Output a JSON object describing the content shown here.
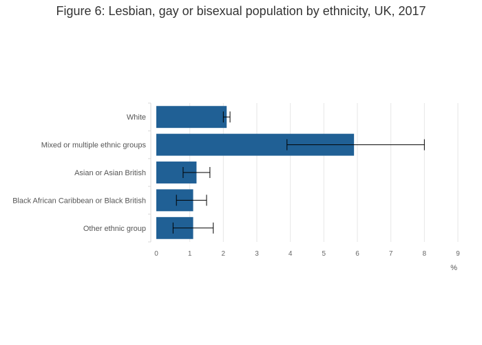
{
  "chart_data": {
    "type": "bar",
    "orientation": "horizontal",
    "title": "Figure 6: Lesbian, gay or bisexual population by ethnicity, UK, 2017",
    "xlabel": "%",
    "ylabel": "",
    "categories": [
      "White",
      "Mixed or multiple ethnic groups",
      "Asian or Asian British",
      "Black African Caribbean or Black British",
      "Other ethnic group"
    ],
    "values": [
      2.1,
      5.9,
      1.2,
      1.1,
      1.1
    ],
    "error_low": [
      2.0,
      3.9,
      0.8,
      0.6,
      0.5
    ],
    "error_high": [
      2.2,
      8.0,
      1.6,
      1.5,
      1.7
    ],
    "xlim": [
      0,
      9
    ],
    "xticks": [
      "0",
      "1",
      "2",
      "3",
      "4",
      "5",
      "6",
      "7",
      "8",
      "9"
    ],
    "grid": true,
    "bar_color": "#206095",
    "error_bar_color": "#000000"
  }
}
